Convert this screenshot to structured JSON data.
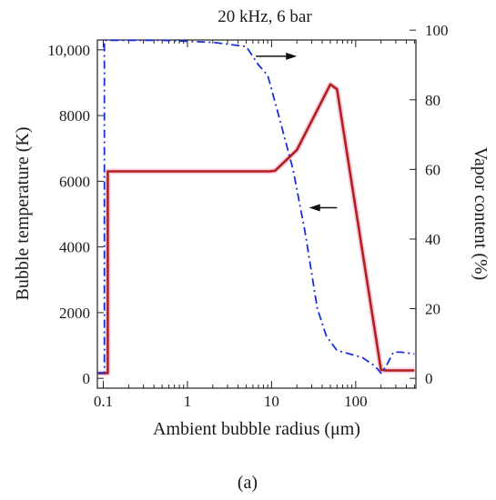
{
  "chart_data": {
    "type": "line",
    "title": "20 kHz, 6 bar",
    "panel_label": "(a)",
    "xlabel": "Ambient bubble radius (μm)",
    "ylabel_left": "Bubble temperature (K)",
    "ylabel_right": "Vapor content (%)",
    "x_scale": "log",
    "xlim": [
      0.085,
      520
    ],
    "ylim_left": [
      -300,
      10300
    ],
    "ylim_right": [
      -2.83,
      97.17
    ],
    "x_ticks": [
      {
        "value": 0.1,
        "label": "0.1"
      },
      {
        "value": 1,
        "label": "1"
      },
      {
        "value": 10,
        "label": "10"
      },
      {
        "value": 100,
        "label": "100"
      }
    ],
    "y_ticks_left": [
      {
        "value": 0,
        "label": "0"
      },
      {
        "value": 2000,
        "label": "2000"
      },
      {
        "value": 4000,
        "label": "4000"
      },
      {
        "value": 6000,
        "label": "6000"
      },
      {
        "value": 8000,
        "label": "8000"
      },
      {
        "value": 10000,
        "label": "10,000"
      }
    ],
    "y_ticks_right": [
      {
        "value": 0,
        "label": "0"
      },
      {
        "value": 20,
        "label": "20"
      },
      {
        "value": 40,
        "label": "40"
      },
      {
        "value": 60,
        "label": "60"
      },
      {
        "value": 80,
        "label": "80"
      },
      {
        "value": 100,
        "label": "100"
      }
    ],
    "series": [
      {
        "axis": "left",
        "color": "#b3201b",
        "style": "solid",
        "points": [
          [
            0.086,
            160
          ],
          [
            0.113,
            160
          ],
          [
            0.113,
            6300
          ],
          [
            9.5,
            6300
          ],
          [
            11,
            6320
          ],
          [
            20,
            6950
          ],
          [
            50,
            8950
          ],
          [
            60,
            8800
          ],
          [
            200,
            260
          ],
          [
            230,
            240
          ],
          [
            500,
            240
          ]
        ]
      },
      {
        "axis": "right",
        "color": "#1c2fd6",
        "style": "dashdot",
        "points": [
          [
            0.086,
            1.5
          ],
          [
            0.103,
            1.5
          ],
          [
            0.103,
            97.1
          ],
          [
            0.5,
            97.1
          ],
          [
            2,
            96.5
          ],
          [
            5,
            95.3
          ],
          [
            7,
            90
          ],
          [
            9,
            87
          ],
          [
            12,
            76
          ],
          [
            18,
            60
          ],
          [
            25,
            42
          ],
          [
            35,
            20
          ],
          [
            45,
            12
          ],
          [
            60,
            8
          ],
          [
            120,
            6
          ],
          [
            170,
            3.5
          ],
          [
            200,
            1.5
          ],
          [
            230,
            3.5
          ],
          [
            280,
            7.5
          ],
          [
            350,
            7.5
          ],
          [
            500,
            7
          ]
        ]
      }
    ],
    "annotations": [
      {
        "type": "arrow",
        "direction": "right",
        "points_to": "right axis (vapor content)"
      },
      {
        "type": "arrow",
        "direction": "left",
        "points_to": "left axis (bubble temperature)"
      }
    ]
  }
}
